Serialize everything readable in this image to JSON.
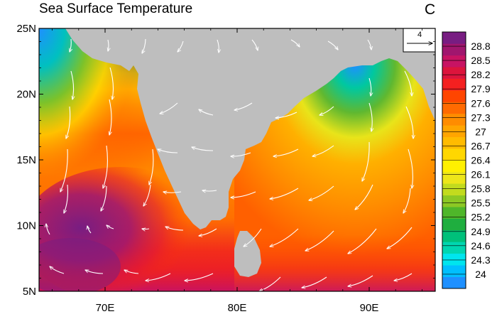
{
  "title": "Sea Surface Temperature",
  "units": "C",
  "reference_vector": {
    "label": "4",
    "magnitude": 4
  },
  "map": {
    "lon_range": [
      65,
      95
    ],
    "lat_range": [
      5,
      25
    ],
    "lat_ticks": [
      "5N",
      "10N",
      "15N",
      "20N",
      "25N"
    ],
    "lon_ticks": [
      "70E",
      "80E",
      "90E"
    ],
    "land_color": "#bebebe"
  },
  "colorbar": {
    "labels": [
      "24",
      "24.3",
      "24.6",
      "24.9",
      "25.2",
      "25.5",
      "25.8",
      "26.1",
      "26.4",
      "26.7",
      "27",
      "27.3",
      "27.6",
      "27.9",
      "28.2",
      "28.5",
      "28.8"
    ],
    "colors": [
      "#1e90ff",
      "#00bfff",
      "#00e5ee",
      "#00d6b0",
      "#00c07a",
      "#1fae3f",
      "#4fb62a",
      "#8cc824",
      "#c2db1e",
      "#ede61a",
      "#fff000",
      "#ffd700",
      "#ffbb00",
      "#ffa500",
      "#ff8c00",
      "#ff6a00",
      "#ff4500",
      "#f42020",
      "#dc143c",
      "#c71363",
      "#a0166e",
      "#781d82"
    ]
  }
}
